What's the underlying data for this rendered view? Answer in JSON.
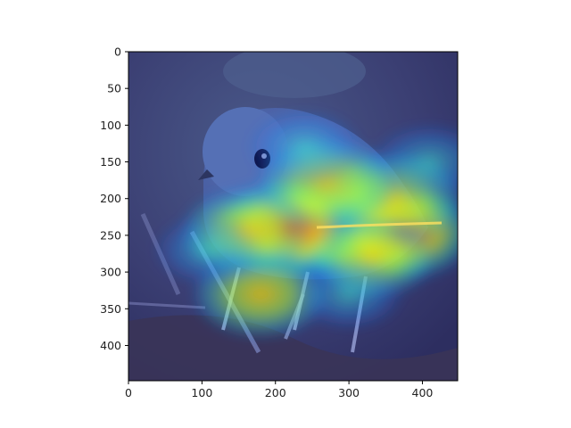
{
  "chart_data": {
    "type": "heatmap",
    "title": "",
    "xlabel": "",
    "ylabel": "",
    "xlim": [
      0,
      448
    ],
    "ylim": [
      448,
      0
    ],
    "x_ticks": [
      0,
      100,
      200,
      300,
      400
    ],
    "y_ticks": [
      0,
      50,
      100,
      150,
      200,
      250,
      300,
      350,
      400
    ],
    "x_tick_labels": [
      "0",
      "100",
      "200",
      "300",
      "400"
    ],
    "y_tick_labels": [
      "0",
      "50",
      "100",
      "150",
      "200",
      "250",
      "300",
      "350",
      "400"
    ],
    "colormap": "jet",
    "overlay_on_image": true,
    "image_subject": "bird",
    "grid": false,
    "hotspots": [
      {
        "x": 290,
        "y": 238,
        "intensity": 1.0
      },
      {
        "x": 220,
        "y": 240,
        "intensity": 0.9
      },
      {
        "x": 370,
        "y": 245,
        "intensity": 0.85
      },
      {
        "x": 360,
        "y": 200,
        "intensity": 0.75
      },
      {
        "x": 270,
        "y": 180,
        "intensity": 0.7
      },
      {
        "x": 180,
        "y": 330,
        "intensity": 0.65
      },
      {
        "x": 160,
        "y": 245,
        "intensity": 0.6
      },
      {
        "x": 330,
        "y": 280,
        "intensity": 0.55
      },
      {
        "x": 410,
        "y": 150,
        "intensity": 0.45
      },
      {
        "x": 240,
        "y": 130,
        "intensity": 0.4
      },
      {
        "x": 110,
        "y": 270,
        "intensity": 0.35
      },
      {
        "x": 300,
        "y": 330,
        "intensity": 0.35
      }
    ]
  }
}
